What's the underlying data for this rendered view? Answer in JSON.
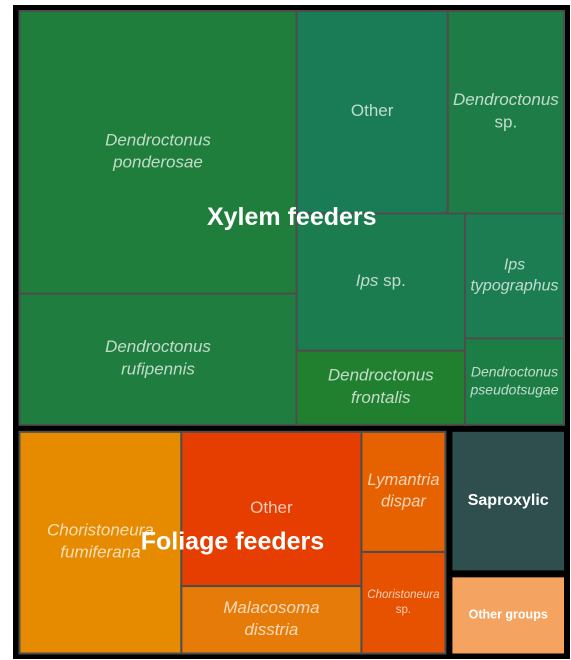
{
  "chart_data": {
    "type": "treemap",
    "groups": [
      {
        "name": "Xylem feeders",
        "children": [
          {
            "name": "Dendroctonus ponderosae",
            "value": 77840,
            "color": "#1f7e3c"
          },
          {
            "name": "Dendroctonus rufipennis",
            "value": 36140,
            "color": "#1f7e3f"
          },
          {
            "name": "Other",
            "value": 30447,
            "color": "#1a7c56"
          },
          {
            "name": "Dendroctonus sp.",
            "value": 23400,
            "color": "#1e7d46"
          },
          {
            "name": "Ips sp.",
            "value": 23000,
            "color": "#1b7c4f"
          },
          {
            "name": "Dendroctonus frontalis",
            "value": 12400,
            "color": "#21802f"
          },
          {
            "name": "Ips typographus",
            "value": 12300,
            "color": "#1c7d52"
          },
          {
            "name": "Dendroctonus pseudotsugae",
            "value": 8500,
            "color": "#1d7e45"
          }
        ]
      },
      {
        "name": "Foliage feeders",
        "children": [
          {
            "name": "Choristoneura fumiferana",
            "value": 36320,
            "color": "#e68a00"
          },
          {
            "name": "Other",
            "value": 28124,
            "color": "#e63d00"
          },
          {
            "name": "Malacosoma disstria",
            "value": 12282,
            "color": "#e67b0a"
          },
          {
            "name": "Lymantria dispar",
            "value": 10209,
            "color": "#e66200"
          },
          {
            "name": "Choristoneura sp.",
            "value": 8632,
            "color": "#e65200"
          }
        ]
      },
      {
        "name": "Saproxylic",
        "value": 16660,
        "color": "#2f4f4f"
      },
      {
        "name": "Other groups",
        "value": 9520,
        "color": "#f4a460"
      }
    ]
  }
}
